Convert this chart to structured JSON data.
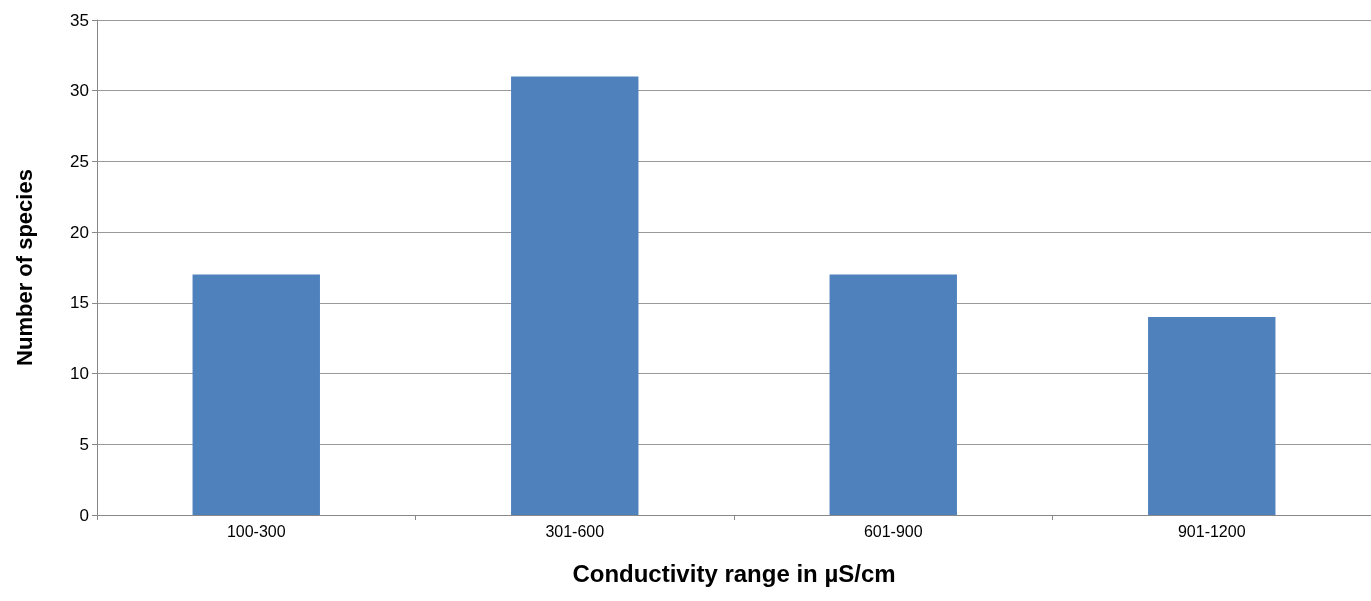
{
  "chart_data": {
    "type": "bar",
    "xlabel": "Conductivity range in µS/cm",
    "ylabel": "Number of species",
    "categories": [
      "100-300",
      "301-600",
      "601-900",
      "901-1200"
    ],
    "values": [
      17,
      31,
      17,
      14
    ],
    "color": "#4f81bd",
    "ylim": [
      0,
      35
    ],
    "yticks": [
      0,
      5,
      10,
      15,
      20,
      25,
      30,
      35
    ],
    "grid": "y"
  }
}
